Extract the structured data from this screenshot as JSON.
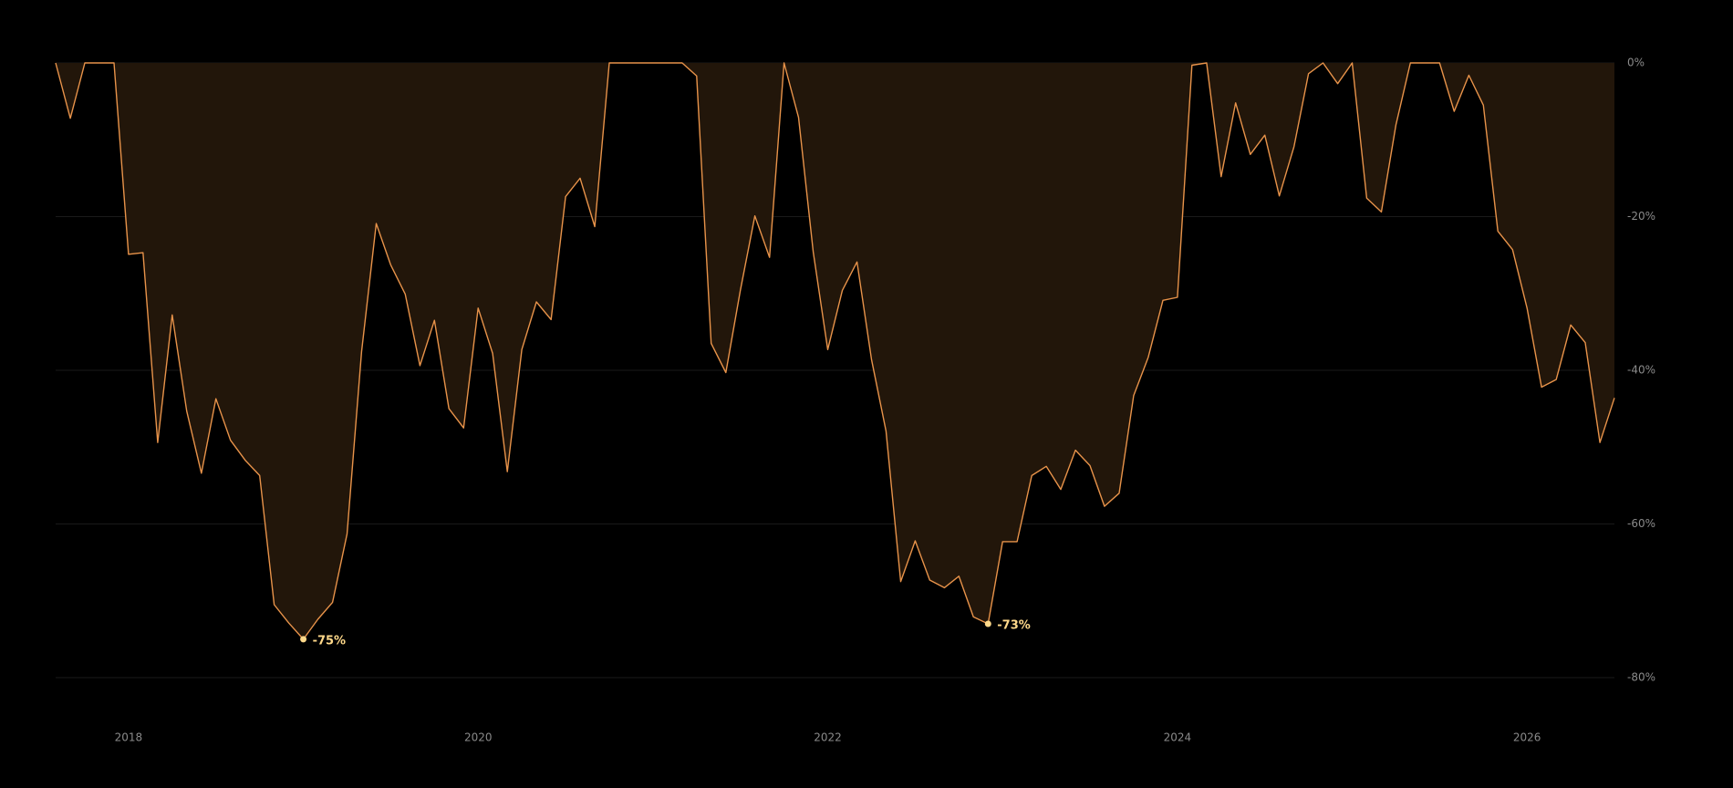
{
  "chart_data": {
    "type": "area",
    "x": [
      2017.583,
      2017.667,
      2017.75,
      2017.833,
      2017.917,
      2018.0,
      2018.083,
      2018.167,
      2018.25,
      2018.333,
      2018.417,
      2018.5,
      2018.583,
      2018.667,
      2018.75,
      2018.833,
      2018.917,
      2019.0,
      2019.083,
      2019.167,
      2019.25,
      2019.333,
      2019.417,
      2019.5,
      2019.583,
      2019.667,
      2019.75,
      2019.833,
      2019.917,
      2020.0,
      2020.083,
      2020.167,
      2020.25,
      2020.333,
      2020.417,
      2020.5,
      2020.583,
      2020.667,
      2020.75,
      2020.833,
      2020.917,
      2021.0,
      2021.083,
      2021.167,
      2021.25,
      2021.333,
      2021.417,
      2021.5,
      2021.583,
      2021.667,
      2021.75,
      2021.833,
      2021.917,
      2022.0,
      2022.083,
      2022.167,
      2022.25,
      2022.333,
      2022.417,
      2022.5,
      2022.583,
      2022.667,
      2022.75,
      2022.833,
      2022.917,
      2023.0,
      2023.083,
      2023.167,
      2023.25,
      2023.333,
      2023.417,
      2023.5,
      2023.583,
      2023.667,
      2023.75,
      2023.833,
      2023.917,
      2024.0,
      2024.083,
      2024.167,
      2024.25,
      2024.333,
      2024.417,
      2024.5,
      2024.583,
      2024.667,
      2024.75,
      2024.833,
      2024.917,
      2025.0,
      2025.083,
      2025.167,
      2025.25,
      2025.333,
      2025.417,
      2025.5,
      2025.583,
      2025.667,
      2025.75,
      2025.833,
      2025.917,
      2026.0,
      2026.083,
      2026.167,
      2026.25,
      2026.333,
      2026.417,
      2026.5
    ],
    "values": [
      0,
      -7.2,
      0,
      0,
      0,
      -24.9,
      -24.7,
      -49.4,
      -32.8,
      -45.3,
      -53.4,
      -43.7,
      -49.1,
      -51.7,
      -53.7,
      -70.5,
      -72.9,
      -75,
      -72.4,
      -70.2,
      -61.3,
      -37.6,
      -20.9,
      -26.3,
      -30.1,
      -39.4,
      -33.5,
      -45.0,
      -47.5,
      -31.9,
      -37.8,
      -53.2,
      -37.3,
      -31.1,
      -33.4,
      -17.4,
      -15.0,
      -21.3,
      0,
      0,
      0,
      0,
      0,
      0,
      -1.7,
      -36.5,
      -40.3,
      -29.6,
      -19.9,
      -25.3,
      0,
      -7.1,
      -24.6,
      -37.3,
      -29.6,
      -25.9,
      -38.6,
      -47.9,
      -67.5,
      -62.2,
      -67.3,
      -68.3,
      -66.8,
      -72.1,
      -73,
      -62.3,
      -62.3,
      -53.7,
      -52.5,
      -55.5,
      -50.4,
      -52.4,
      -57.7,
      -56.0,
      -43.3,
      -38.3,
      -30.9,
      -30.5,
      -0.3,
      0,
      -14.8,
      -5.2,
      -11.9,
      -9.4,
      -17.3,
      -10.9,
      -1.4,
      0,
      -2.7,
      0,
      -17.6,
      -19.4,
      -8.1,
      0,
      0,
      0,
      -6.3,
      -1.6,
      -5.5,
      -21.9,
      -24.3,
      -31.9,
      -42.2,
      -41.2,
      -34.1,
      -36.4,
      -49.4,
      -43.6
    ],
    "color": "#e8934a",
    "fill_color": "#22160a",
    "xlim": [
      2017.583,
      2026.5
    ],
    "xticks": [
      2018,
      2020,
      2022,
      2024,
      2026
    ],
    "ylim": [
      -80,
      0
    ],
    "yticks": [
      {
        "value": 0,
        "label": "0%"
      },
      {
        "value": -20,
        "label": "-20%"
      },
      {
        "value": -40,
        "label": "-40%"
      },
      {
        "value": -60,
        "label": "-60%"
      },
      {
        "value": -80,
        "label": "-80%"
      }
    ],
    "grid": true,
    "annotations": [
      {
        "x": 2019.0,
        "value": -75,
        "label": "-75%"
      },
      {
        "x": 2022.917,
        "value": -73,
        "label": "-73%"
      }
    ],
    "annotation_color": "#ffd98a"
  }
}
